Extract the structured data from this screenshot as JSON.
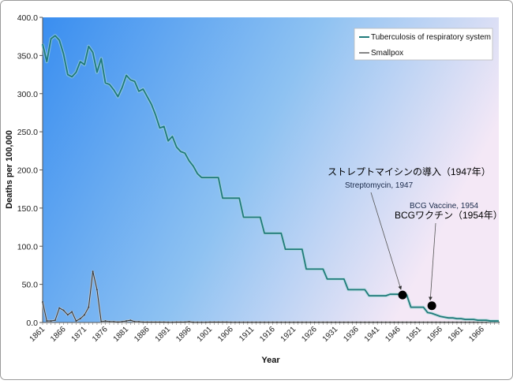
{
  "chart_data": {
    "type": "line",
    "xlabel": "Year",
    "ylabel": "Deaths per 100,000",
    "ylim": [
      0,
      400
    ],
    "y_ticks": [
      "0.0",
      "50.0",
      "100.0",
      "150.0",
      "200.0",
      "250.0",
      "300.0",
      "350.0",
      "400.0"
    ],
    "xlim": [
      1861,
      1970
    ],
    "x_ticks": [
      "1861",
      "1866",
      "1871",
      "1876",
      "1881",
      "1886",
      "1891",
      "1896",
      "1901",
      "1906",
      "1911",
      "1916",
      "1921",
      "1926",
      "1931",
      "1936",
      "1941",
      "1946",
      "1951",
      "1956",
      "1961",
      "1966"
    ],
    "legend_position": "top-right",
    "series": [
      {
        "name": "Tuberculosis of respiratory system",
        "color": "#1f7a7a",
        "x": [
          1861,
          1862,
          1863,
          1864,
          1865,
          1866,
          1867,
          1868,
          1869,
          1870,
          1871,
          1872,
          1873,
          1874,
          1875,
          1876,
          1877,
          1878,
          1879,
          1880,
          1881,
          1882,
          1883,
          1884,
          1885,
          1886,
          1887,
          1888,
          1889,
          1890,
          1891,
          1892,
          1893,
          1894,
          1895,
          1896,
          1897,
          1898,
          1899,
          1900,
          1901,
          1902,
          1903,
          1904,
          1905,
          1906,
          1907,
          1908,
          1909,
          1910,
          1911,
          1912,
          1913,
          1914,
          1915,
          1916,
          1917,
          1918,
          1919,
          1920,
          1921,
          1922,
          1923,
          1924,
          1925,
          1926,
          1927,
          1928,
          1929,
          1930,
          1931,
          1932,
          1933,
          1934,
          1935,
          1936,
          1937,
          1938,
          1939,
          1940,
          1941,
          1942,
          1943,
          1944,
          1945,
          1946,
          1947,
          1948,
          1949,
          1950,
          1951,
          1952,
          1953,
          1954,
          1955,
          1956,
          1957,
          1958,
          1959,
          1960,
          1961,
          1962,
          1963,
          1964,
          1965,
          1966,
          1967,
          1968,
          1969,
          1970
        ],
        "y": [
          365,
          342,
          372,
          376,
          370,
          352,
          325,
          322,
          328,
          342,
          338,
          362,
          354,
          328,
          346,
          314,
          312,
          305,
          296,
          308,
          324,
          318,
          316,
          303,
          306,
          296,
          286,
          272,
          255,
          257,
          238,
          244,
          230,
          224,
          222,
          212,
          205,
          195,
          190,
          190,
          190,
          190,
          190,
          163,
          163,
          163,
          163,
          163,
          138,
          138,
          138,
          138,
          138,
          117,
          117,
          117,
          117,
          117,
          96,
          96,
          96,
          96,
          96,
          70,
          70,
          70,
          70,
          70,
          57,
          57,
          57,
          57,
          57,
          43,
          43,
          43,
          43,
          43,
          35,
          35,
          35,
          35,
          35,
          37,
          37,
          37,
          36,
          36,
          20,
          20,
          20,
          20,
          13,
          12,
          10,
          8,
          7,
          6,
          6,
          5,
          5,
          4,
          4,
          4,
          3,
          3,
          3,
          2,
          2,
          2
        ]
      },
      {
        "name": "Smallpox",
        "color": "#333333",
        "x": [
          1861,
          1862,
          1863,
          1864,
          1865,
          1866,
          1867,
          1868,
          1869,
          1870,
          1871,
          1872,
          1873,
          1874,
          1875,
          1876,
          1877,
          1878,
          1879,
          1880,
          1881,
          1882,
          1883,
          1884,
          1885,
          1886,
          1887,
          1888,
          1889,
          1890,
          1891,
          1892,
          1893,
          1894,
          1895,
          1896,
          1897,
          1898,
          1899,
          1900,
          1901,
          1902,
          1903,
          1904,
          1905,
          1906,
          1907,
          1908,
          1909,
          1910,
          1911,
          1912,
          1913,
          1914,
          1915,
          1916,
          1917,
          1918,
          1919,
          1920,
          1921,
          1922,
          1923,
          1924,
          1925,
          1926,
          1927,
          1928,
          1929,
          1930,
          1931,
          1932,
          1933,
          1934,
          1935,
          1936,
          1937,
          1938,
          1939,
          1940,
          1941,
          1942,
          1943,
          1944,
          1945,
          1946,
          1947,
          1948,
          1949,
          1950,
          1951,
          1952,
          1953,
          1954,
          1955,
          1956,
          1957,
          1958,
          1959,
          1960,
          1961,
          1962,
          1963,
          1964,
          1965,
          1966,
          1967,
          1968,
          1969,
          1970
        ],
        "y": [
          27,
          2,
          2,
          3,
          19,
          16,
          10,
          14,
          2,
          5,
          10,
          20,
          67,
          43,
          1,
          2,
          1,
          1,
          0.5,
          1,
          2,
          3,
          1,
          1,
          0.5,
          0.5,
          0.5,
          0.5,
          0.5,
          0.5,
          0.3,
          0.3,
          0.5,
          0.5,
          0.5,
          1,
          0.3,
          0.3,
          0.3,
          0.3,
          0.5,
          0.5,
          0.5,
          0.5,
          0.5,
          0.3,
          0.3,
          0.3,
          0.3,
          0.3,
          0.3,
          0.3,
          0.3,
          0.3,
          0.3,
          0.3,
          0.3,
          0.3,
          0.3,
          0.3,
          0.3,
          0.3,
          0.3,
          0.3,
          0.3,
          0.3,
          0.3,
          0.3,
          0.3,
          0.3,
          0.3,
          0.3,
          0.3,
          0.3,
          0.3,
          0.3,
          0.3,
          0.3,
          0.3,
          0.3,
          0.3,
          0.3,
          0.3,
          0.3,
          0.3,
          0.3,
          0.3,
          0.3,
          0.3,
          0.3,
          0.3,
          0.3,
          0.3,
          0.3,
          0.3,
          0.3,
          0.3,
          0.3,
          0.3,
          0.3,
          0.3,
          0.3,
          0.3,
          0.3,
          0.3,
          0.3,
          0.3,
          0.3,
          0.3,
          0.3
        ]
      }
    ],
    "annotations": [
      {
        "text_ja": "ストレプトマイシンの導入（1947年）",
        "text_en": "Streptomycin, 1947",
        "x": 1947,
        "y": 36
      },
      {
        "text_ja": "BCGワクチン（1954年）",
        "text_en": "BCG Vaccine, 1954",
        "x": 1954,
        "y": 22
      }
    ],
    "colors": {
      "plot_bg_left": "#3a8ef0",
      "plot_bg_right": "#f4e8f6",
      "marker": "#000000"
    }
  }
}
